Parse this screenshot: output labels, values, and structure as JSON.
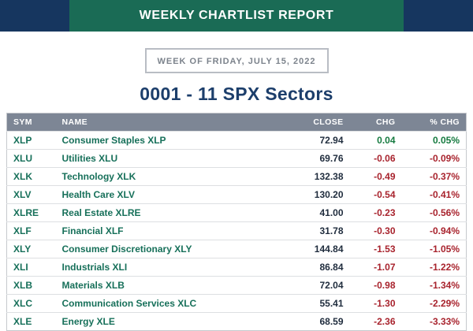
{
  "header": {
    "title": "WEEKLY CHARTLIST REPORT"
  },
  "subheader": {
    "week_label": "WEEK OF FRIDAY, JULY 15, 2022"
  },
  "page_title": "0001 - 11 SPX Sectors",
  "colors": {
    "banner_green": "#1a6b55",
    "banner_navy": "#16365f",
    "link_teal": "#17705a",
    "positive_green": "#157a3f",
    "negative_red": "#a8232d",
    "header_row_gray": "#7d8695",
    "title_navy": "#1c3e6b"
  },
  "table": {
    "columns": [
      "SYM",
      "NAME",
      "CLOSE",
      "CHG",
      "% CHG"
    ],
    "rows": [
      {
        "sym": "XLP",
        "name": "Consumer Staples XLP",
        "close": "72.94",
        "chg": "0.04",
        "pct": "0.05%"
      },
      {
        "sym": "XLU",
        "name": "Utilities XLU",
        "close": "69.76",
        "chg": "-0.06",
        "pct": "-0.09%"
      },
      {
        "sym": "XLK",
        "name": "Technology XLK",
        "close": "132.38",
        "chg": "-0.49",
        "pct": "-0.37%"
      },
      {
        "sym": "XLV",
        "name": "Health Care XLV",
        "close": "130.20",
        "chg": "-0.54",
        "pct": "-0.41%"
      },
      {
        "sym": "XLRE",
        "name": "Real Estate XLRE",
        "close": "41.00",
        "chg": "-0.23",
        "pct": "-0.56%"
      },
      {
        "sym": "XLF",
        "name": "Financial XLF",
        "close": "31.78",
        "chg": "-0.30",
        "pct": "-0.94%"
      },
      {
        "sym": "XLY",
        "name": "Consumer Discretionary XLY",
        "close": "144.84",
        "chg": "-1.53",
        "pct": "-1.05%"
      },
      {
        "sym": "XLI",
        "name": "Industrials XLI",
        "close": "86.84",
        "chg": "-1.07",
        "pct": "-1.22%"
      },
      {
        "sym": "XLB",
        "name": "Materials XLB",
        "close": "72.04",
        "chg": "-0.98",
        "pct": "-1.34%"
      },
      {
        "sym": "XLC",
        "name": "Communication Services XLC",
        "close": "55.41",
        "chg": "-1.30",
        "pct": "-2.29%"
      },
      {
        "sym": "XLE",
        "name": "Energy XLE",
        "close": "68.59",
        "chg": "-2.36",
        "pct": "-3.33%"
      }
    ]
  }
}
